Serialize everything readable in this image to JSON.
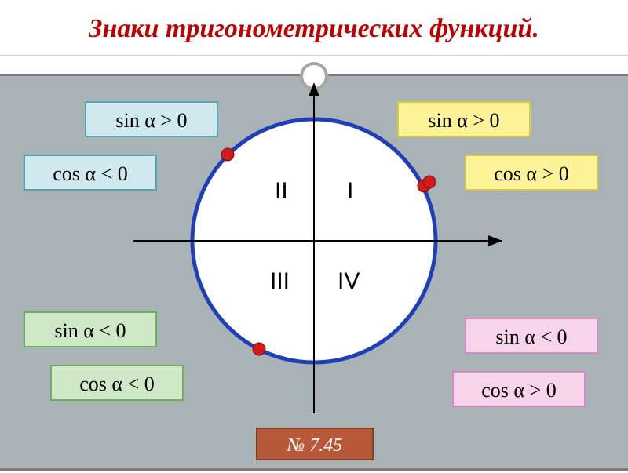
{
  "title": {
    "text": "Знаки  тригонометрических  функций.",
    "color": "#c00000",
    "fontsize": 34
  },
  "canvas": {
    "bg": "#a9b3b6",
    "circle_stroke": "#1f3fba",
    "circle_stroke_width": 5,
    "circle_fill": "#ffffff",
    "axis_color": "#000000",
    "axis_width": 2,
    "dot_fill": "#d11b1b",
    "dot_stroke": "#7a0f0f",
    "quadrant_label_color": "#000000",
    "quadrant_label_fontsize": 30,
    "decor_ring_border": "#a5a5a5"
  },
  "quadrants": {
    "I": "I",
    "II": "II",
    "III": "III",
    "IV": "IV"
  },
  "labels": {
    "q2_sin": {
      "text": "sin α > 0",
      "bg": "#cfe9ee",
      "border": "#57a5b4",
      "color": "#000000"
    },
    "q2_cos": {
      "text": "cos α < 0",
      "bg": "#cfe9ee",
      "border": "#57a5b4",
      "color": "#000000"
    },
    "q1_sin": {
      "text": "sin α > 0",
      "bg": "#fff39a",
      "border": "#d6c742",
      "color": "#000000"
    },
    "q1_cos": {
      "text": "cos α > 0",
      "bg": "#fff39a",
      "border": "#d6c742",
      "color": "#000000"
    },
    "q3_sin": {
      "text": "sin α < 0",
      "bg": "#cfe8c7",
      "border": "#6fae5f",
      "color": "#000000"
    },
    "q3_cos": {
      "text": "cos α < 0",
      "bg": "#cfe8c7",
      "border": "#6fae5f",
      "color": "#000000"
    },
    "q4_sin": {
      "text": "sin α < 0",
      "bg": "#f6d5ec",
      "border": "#d38bc1",
      "color": "#000000"
    },
    "q4_cos": {
      "text": "cos α > 0",
      "bg": "#f6d5ec",
      "border": "#d38bc1",
      "color": "#000000"
    }
  },
  "label_style": {
    "fontsize": 26,
    "width": 170,
    "height": 46
  },
  "footer": {
    "text": "№ 7.45",
    "bg": "#b85a3a",
    "border": "#7f3f29",
    "fontsize": 24
  }
}
